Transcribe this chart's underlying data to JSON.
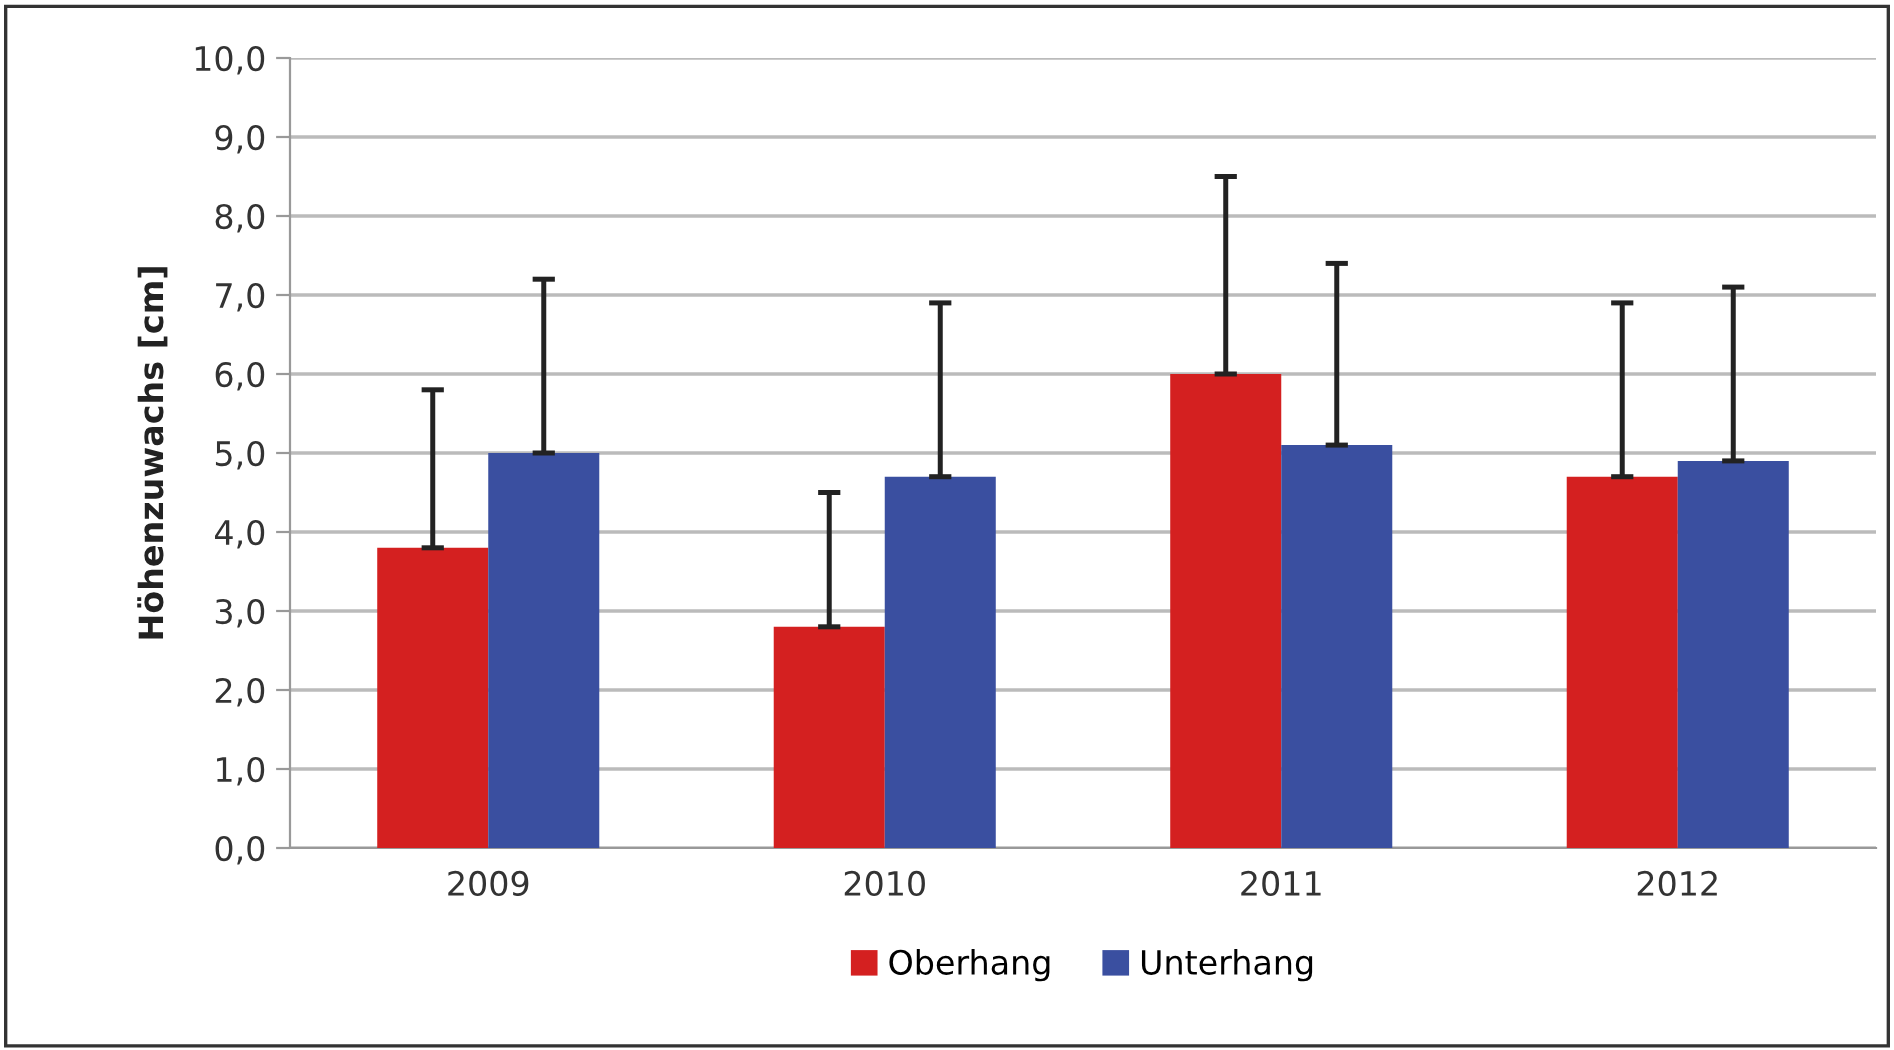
{
  "chart_data": {
    "type": "bar",
    "ylabel": "Höhenzuwachs [cm]",
    "categories": [
      "2009",
      "2010",
      "2011",
      "2012"
    ],
    "series": [
      {
        "name": "Oberhang",
        "color": "#d42020",
        "values": [
          3.8,
          2.8,
          6.0,
          4.7
        ],
        "errors": [
          [
            3.8,
            5.8
          ],
          [
            2.8,
            4.5
          ],
          [
            6.0,
            8.5
          ],
          [
            4.7,
            6.9
          ]
        ]
      },
      {
        "name": "Unterhang",
        "color": "#3a4fa0",
        "values": [
          5.0,
          4.7,
          5.1,
          4.9
        ],
        "errors": [
          [
            5.0,
            7.2
          ],
          [
            4.7,
            6.9
          ],
          [
            5.1,
            7.4
          ],
          [
            4.9,
            7.1
          ]
        ]
      }
    ],
    "ylim": [
      0,
      10
    ],
    "yticks": [
      {
        "value": 0,
        "label": "0,0"
      },
      {
        "value": 1,
        "label": "1,0"
      },
      {
        "value": 2,
        "label": "2,0"
      },
      {
        "value": 3,
        "label": "3,0"
      },
      {
        "value": 4,
        "label": "4,0"
      },
      {
        "value": 5,
        "label": "5,0"
      },
      {
        "value": 6,
        "label": "6,0"
      },
      {
        "value": 7,
        "label": "7,0"
      },
      {
        "value": 8,
        "label": "8,0"
      },
      {
        "value": 9,
        "label": "9,0"
      },
      {
        "value": 10,
        "label": "10,0"
      }
    ],
    "grid": "y",
    "legend": "bottom"
  }
}
